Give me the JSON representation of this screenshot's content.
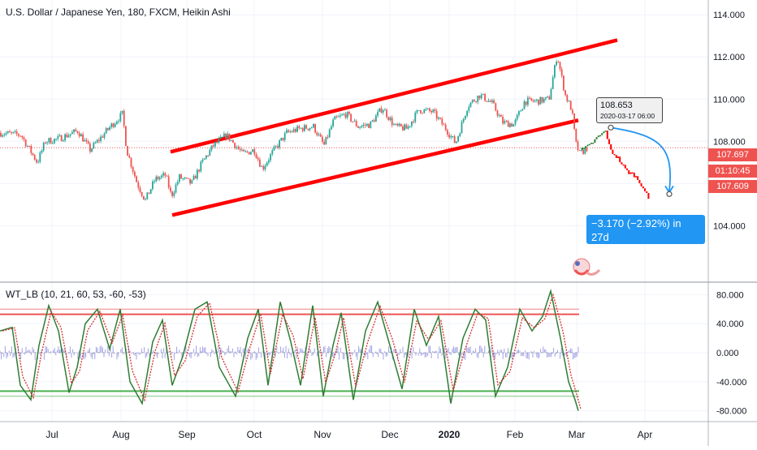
{
  "header": {
    "title": "U.S. Dollar / Japanese Yen, 180, FXCM, Heikin Ashi",
    "indicator": "WT_LB (10, 21, 60, 53, -60, -53)"
  },
  "price_labels": {
    "last": "107.697",
    "countdown": "01:10:45",
    "second": "107.609"
  },
  "tooltip": {
    "value": "108.653",
    "datetime": "2020-03-17 06:00"
  },
  "projection": {
    "change": "−3.170 (−2.92%) in 27d",
    "value": "105.483",
    "datetime": "2020-04-13  06:00"
  },
  "colors": {
    "up": "#26a69a",
    "down": "#ef5350",
    "channel": "#ff0000",
    "wt1": "#2e7d32",
    "wt2": "#d32f2f",
    "wt_diff": "#7b7bdc",
    "ob": "#ef5350",
    "os": "#4caf50",
    "accent": "#2196f3"
  },
  "chart_data": [
    {
      "type": "candlestick",
      "title": "U.S. Dollar / Japanese Yen, 180, FXCM, Heikin Ashi",
      "x_ticks": [
        "Jul",
        "Aug",
        "Sep",
        "Oct",
        "Nov",
        "Dec",
        "2020",
        "Feb",
        "Mar",
        "Apr"
      ],
      "y_ticks": [
        "104.000",
        "106.000",
        "108.000",
        "110.000",
        "112.000",
        "114.000"
      ],
      "ylim": [
        101.4,
        114.7
      ],
      "price_path": [
        [
          0,
          108.4
        ],
        [
          25,
          108.3
        ],
        [
          45,
          107.0
        ],
        [
          55,
          108.0
        ],
        [
          70,
          108.1
        ],
        [
          95,
          108.5
        ],
        [
          110,
          107.6
        ],
        [
          135,
          108.7
        ],
        [
          150,
          109.3
        ],
        [
          155,
          107.6
        ],
        [
          168,
          106.0
        ],
        [
          178,
          105.2
        ],
        [
          190,
          106.2
        ],
        [
          203,
          106.4
        ],
        [
          210,
          105.4
        ],
        [
          220,
          106.3
        ],
        [
          235,
          106.0
        ],
        [
          248,
          107.0
        ],
        [
          262,
          107.8
        ],
        [
          278,
          108.3
        ],
        [
          298,
          107.4
        ],
        [
          312,
          107.6
        ],
        [
          322,
          106.7
        ],
        [
          335,
          107.5
        ],
        [
          352,
          108.4
        ],
        [
          368,
          108.6
        ],
        [
          385,
          108.7
        ],
        [
          398,
          107.8
        ],
        [
          410,
          109.0
        ],
        [
          425,
          109.3
        ],
        [
          440,
          108.7
        ],
        [
          455,
          108.8
        ],
        [
          470,
          109.6
        ],
        [
          485,
          108.7
        ],
        [
          500,
          108.6
        ],
        [
          515,
          109.5
        ],
        [
          532,
          109.4
        ],
        [
          548,
          108.6
        ],
        [
          560,
          107.9
        ],
        [
          575,
          109.7
        ],
        [
          590,
          110.2
        ],
        [
          605,
          109.8
        ],
        [
          618,
          108.9
        ],
        [
          632,
          108.8
        ],
        [
          645,
          109.9
        ],
        [
          660,
          109.9
        ],
        [
          675,
          110.0
        ],
        [
          685,
          112.1
        ],
        [
          695,
          110.2
        ],
        [
          703,
          109.5
        ],
        [
          708,
          107.9
        ],
        [
          713,
          107.4
        ],
        [
          722,
          107.7
        ]
      ],
      "forecast_path": [
        [
          716,
          107.6
        ],
        [
          725,
          107.8
        ],
        [
          735,
          108.2
        ],
        [
          745,
          108.5
        ],
        [
          750,
          107.6
        ],
        [
          760,
          107.2
        ],
        [
          770,
          106.6
        ],
        [
          780,
          106.4
        ],
        [
          790,
          105.9
        ],
        [
          798,
          105.2
        ]
      ],
      "channel_upper": [
        [
          210,
          107.5
        ],
        [
          760,
          112.8
        ]
      ],
      "channel_lower": [
        [
          212,
          104.5
        ],
        [
          712,
          109.0
        ]
      ],
      "hline": 107.697,
      "last_price": 107.697
    },
    {
      "type": "line",
      "title": "WT_LB (10, 21, 60, 53, -60, -53)",
      "y_ticks": [
        "80.000",
        "40.000",
        "0.000",
        "-40.000",
        "-80.000"
      ],
      "ylim": [
        -95,
        95
      ],
      "overbought": [
        53,
        60
      ],
      "oversold": [
        -53,
        -60
      ],
      "series": [
        {
          "values": [
            [
              0,
              30
            ],
            [
              15,
              35
            ],
            [
              25,
              -45
            ],
            [
              38,
              -65
            ],
            [
              48,
              10
            ],
            [
              60,
              65
            ],
            [
              72,
              30
            ],
            [
              85,
              -55
            ],
            [
              95,
              -20
            ],
            [
              105,
              40
            ],
            [
              120,
              60
            ],
            [
              135,
              5
            ],
            [
              148,
              60
            ],
            [
              160,
              -40
            ],
            [
              175,
              -70
            ],
            [
              188,
              15
            ],
            [
              200,
              45
            ],
            [
              212,
              -45
            ],
            [
              225,
              -5
            ],
            [
              240,
              60
            ],
            [
              255,
              70
            ],
            [
              270,
              -20
            ],
            [
              290,
              -60
            ],
            [
              305,
              20
            ],
            [
              318,
              60
            ],
            [
              330,
              -45
            ],
            [
              345,
              70
            ],
            [
              358,
              15
            ],
            [
              370,
              -45
            ],
            [
              385,
              65
            ],
            [
              398,
              -60
            ],
            [
              410,
              10
            ],
            [
              420,
              55
            ],
            [
              435,
              -65
            ],
            [
              450,
              30
            ],
            [
              465,
              70
            ],
            [
              480,
              10
            ],
            [
              495,
              -50
            ],
            [
              510,
              60
            ],
            [
              525,
              10
            ],
            [
              540,
              50
            ],
            [
              555,
              -70
            ],
            [
              570,
              20
            ],
            [
              585,
              60
            ],
            [
              598,
              45
            ],
            [
              610,
              -60
            ],
            [
              625,
              -20
            ],
            [
              640,
              60
            ],
            [
              655,
              30
            ],
            [
              668,
              50
            ],
            [
              678,
              85
            ],
            [
              690,
              20
            ],
            [
              700,
              -40
            ],
            [
              708,
              -65
            ],
            [
              712,
              -80
            ]
          ]
        }
      ]
    }
  ]
}
